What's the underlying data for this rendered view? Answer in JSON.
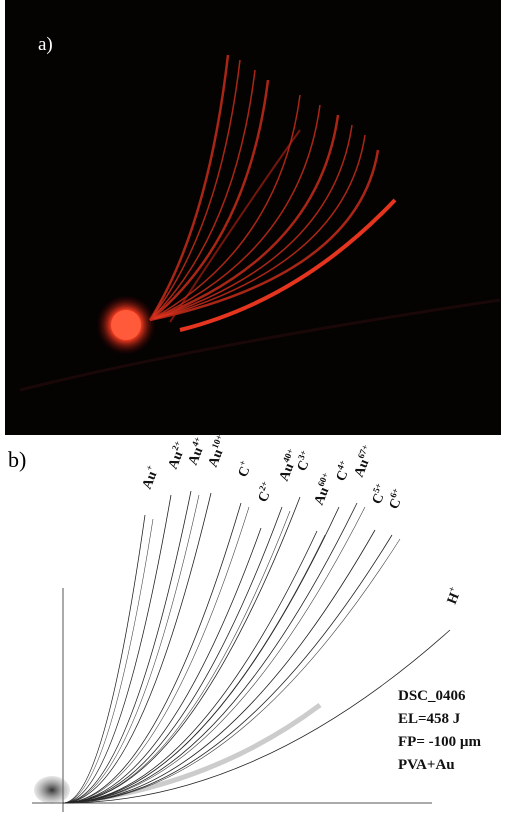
{
  "panel_a": {
    "label": "a)"
  },
  "panel_b": {
    "label": "b)",
    "ions": [
      {
        "base": "Au",
        "charge": "+"
      },
      {
        "base": "Au",
        "charge": "2+"
      },
      {
        "base": "Au",
        "charge": "4+"
      },
      {
        "base": "Au",
        "charge": "10+"
      },
      {
        "base": "C",
        "charge": "+"
      },
      {
        "base": "C",
        "charge": "2+"
      },
      {
        "base": "Au",
        "charge": "40+"
      },
      {
        "base": "C",
        "charge": "3+"
      },
      {
        "base": "Au",
        "charge": "60+"
      },
      {
        "base": "C",
        "charge": "4+"
      },
      {
        "base": "Au",
        "charge": "67+"
      },
      {
        "base": "C",
        "charge": "5+"
      },
      {
        "base": "C",
        "charge": "6+"
      },
      {
        "base": "H",
        "charge": "+"
      }
    ],
    "info": [
      "DSC_0406",
      "EL=458 J",
      "FP= -100 µm",
      "PVA+Au"
    ]
  }
}
